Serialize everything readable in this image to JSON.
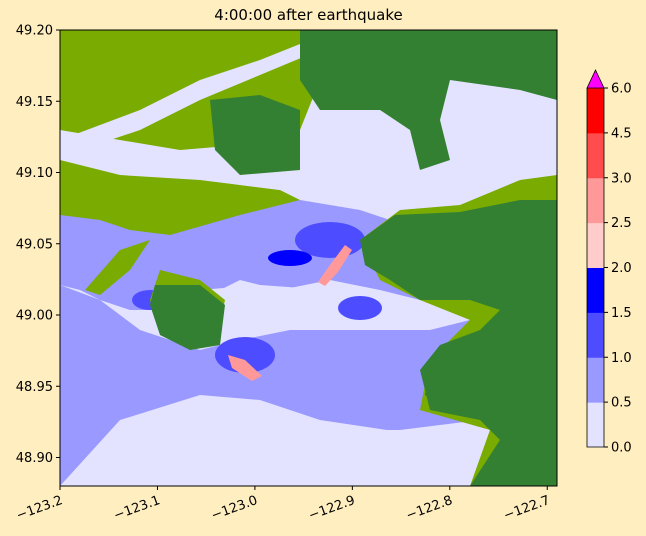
{
  "title": "4:00:00 after earthquake",
  "map": {
    "x_ticks": [
      "−123.2",
      "−123.1",
      "−123.0",
      "−122.9",
      "−122.8",
      "−122.7"
    ],
    "x_tick_values": [
      -123.2,
      -123.1,
      -123.0,
      -122.9,
      -122.8,
      -122.7
    ],
    "y_ticks": [
      "49.20",
      "49.15",
      "49.10",
      "49.05",
      "49.00",
      "48.95",
      "48.90"
    ],
    "y_tick_values": [
      49.2,
      49.15,
      49.1,
      49.05,
      49.0,
      48.95,
      48.9
    ],
    "xlim": [
      -123.2,
      -122.69
    ],
    "ylim": [
      48.88,
      49.2
    ],
    "colors": {
      "land_high": "#338033",
      "land_low": "#7aab00",
      "water_0": "#e3e3ff",
      "water_1": "#9999ff",
      "water_2": "#4d4dff",
      "water_3": "#0000ff"
    }
  },
  "colorbar": {
    "ticks": [
      "0.0",
      "0.5",
      "1.0",
      "1.5",
      "2.0",
      "2.5",
      "3.0",
      "4.5",
      "6.0"
    ],
    "colors": [
      "#e3e3ff",
      "#9999ff",
      "#4d4dff",
      "#0000ff",
      "#ffcccc",
      "#ff9999",
      "#ff4d4d",
      "#ff0000"
    ],
    "extend_color": "#ff00ff"
  }
}
